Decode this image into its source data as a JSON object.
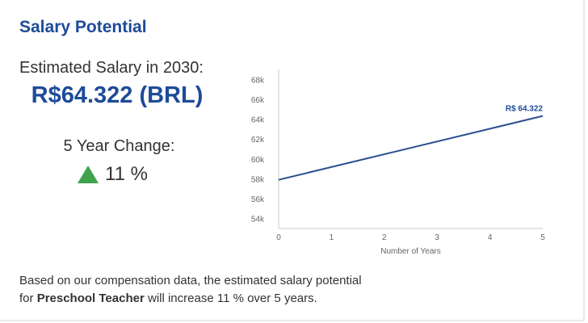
{
  "title": "Salary Potential",
  "estimate": {
    "label": "Estimated Salary in 2030:",
    "value": "R$64.322 (BRL)"
  },
  "change": {
    "label": "5 Year Change:",
    "value": "11 %",
    "direction": "up",
    "icon": "triangle-up-icon",
    "color": "#3fa34d"
  },
  "description": {
    "prefix": "Based on our compensation data, the estimated salary potential",
    "for_word": "for ",
    "job": "Preschool Teacher",
    "suffix": " will increase 11 % over 5 years."
  },
  "colors": {
    "accent": "#1d4b98",
    "line": "#2a4f8f"
  },
  "chart_data": {
    "type": "line",
    "xlabel": "Number of Years",
    "ylabel": "",
    "x": [
      0,
      5
    ],
    "y": [
      57.9,
      64.322
    ],
    "xlim": [
      0,
      5
    ],
    "ylim": [
      53,
      69
    ],
    "x_ticks": [
      0,
      1,
      2,
      3,
      4,
      5
    ],
    "y_ticks": [
      54,
      56,
      58,
      60,
      62,
      64,
      66,
      68
    ],
    "y_tick_labels": [
      "54k",
      "56k",
      "58k",
      "60k",
      "62k",
      "64k",
      "66k",
      "68k"
    ],
    "end_label": "R$ 64.322",
    "grid": false
  }
}
